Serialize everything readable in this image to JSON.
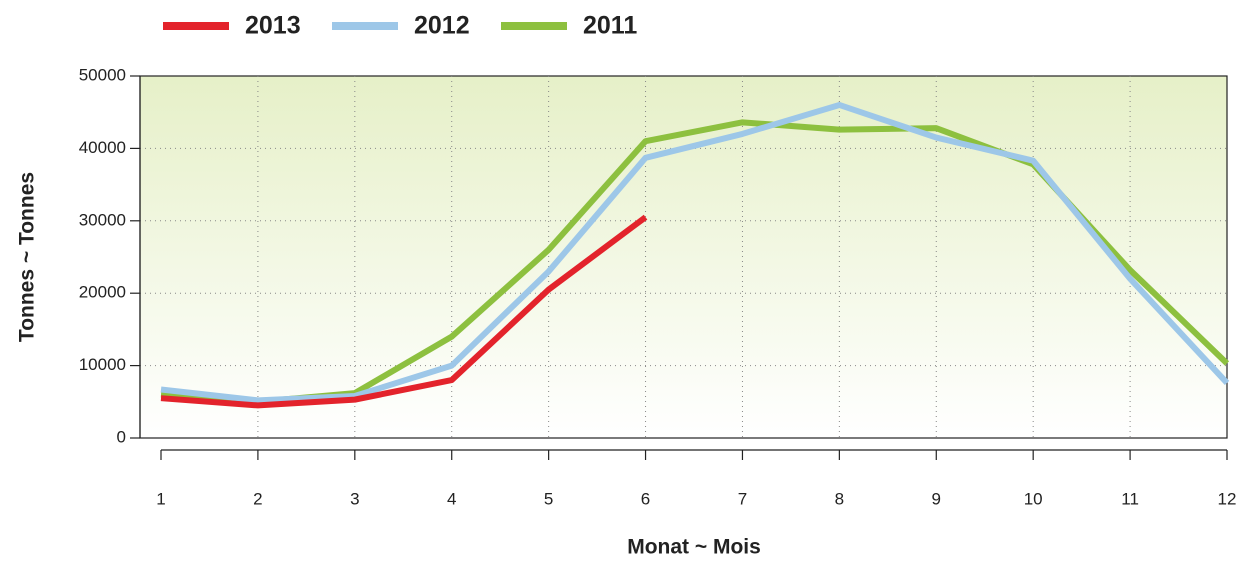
{
  "chart_data": {
    "type": "line",
    "x": [
      1,
      2,
      3,
      4,
      5,
      6,
      7,
      8,
      9,
      10,
      11,
      12
    ],
    "xlim": [
      1,
      12
    ],
    "xticks": [
      1,
      2,
      3,
      4,
      5,
      6,
      7,
      8,
      9,
      10,
      11,
      12
    ],
    "ylim": [
      0,
      50000
    ],
    "yticks": [
      0,
      10000,
      20000,
      30000,
      40000,
      50000
    ],
    "x_label": "Monat ~ Mois",
    "y_label": "Tonnes ~ Tonnes",
    "grid": true,
    "legend": "top",
    "series": [
      {
        "name": "2013",
        "color": "#e3232b",
        "values": [
          5500,
          4500,
          5300,
          8000,
          20500,
          30500,
          null,
          null,
          null,
          null,
          null,
          null
        ]
      },
      {
        "name": "2012",
        "color": "#9dc7e8",
        "values": [
          6700,
          5200,
          5800,
          10000,
          23000,
          38700,
          42000,
          46000,
          41500,
          38300,
          22000,
          7600
        ]
      },
      {
        "name": "2011",
        "color": "#8dc03f",
        "values": [
          6000,
          5000,
          6200,
          14000,
          26000,
          41000,
          43600,
          42600,
          42800,
          37800,
          23200,
          10300
        ]
      }
    ]
  }
}
